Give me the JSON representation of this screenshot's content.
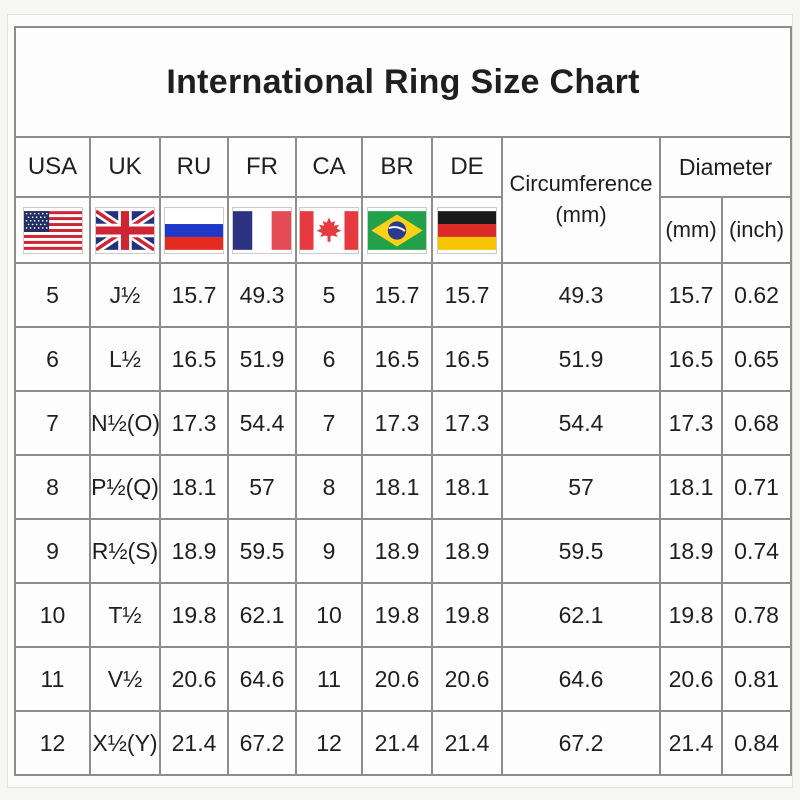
{
  "title": "International Ring Size Chart",
  "table": {
    "country_columns": [
      {
        "code": "USA",
        "icon": "usa-flag-icon"
      },
      {
        "code": "UK",
        "icon": "uk-flag-icon"
      },
      {
        "code": "RU",
        "icon": "ru-flag-icon"
      },
      {
        "code": "FR",
        "icon": "fr-flag-icon"
      },
      {
        "code": "CA",
        "icon": "ca-flag-icon"
      },
      {
        "code": "BR",
        "icon": "br-flag-icon"
      },
      {
        "code": "DE",
        "icon": "de-flag-icon"
      }
    ],
    "circumference_header": "Circumference",
    "circumference_unit": "(mm)",
    "diameter_header": "Diameter",
    "diameter_mm_label": "(mm)",
    "diameter_inch_label": "(inch)",
    "row_keys": [
      "usa",
      "uk",
      "ru",
      "fr",
      "ca",
      "br",
      "de",
      "circumference_mm",
      "diameter_mm",
      "diameter_inch"
    ]
  },
  "colors": {
    "border_gray": "#8e8e8e",
    "text": "#1f1f1f",
    "cell_background": "#fdfdfd"
  },
  "chart_data": {
    "type": "table",
    "title": "International Ring Size Chart",
    "columns": [
      "USA",
      "UK",
      "RU",
      "FR",
      "CA",
      "BR",
      "DE",
      "Circumference (mm)",
      "Diameter (mm)",
      "Diameter (inch)"
    ],
    "rows": [
      [
        "5",
        "J½",
        "15.7",
        "49.3",
        "5",
        "15.7",
        "15.7",
        "49.3",
        "15.7",
        "0.62"
      ],
      [
        "6",
        "L½",
        "16.5",
        "51.9",
        "6",
        "16.5",
        "16.5",
        "51.9",
        "16.5",
        "0.65"
      ],
      [
        "7",
        "N½(O)",
        "17.3",
        "54.4",
        "7",
        "17.3",
        "17.3",
        "54.4",
        "17.3",
        "0.68"
      ],
      [
        "8",
        "P½(Q)",
        "18.1",
        "57",
        "8",
        "18.1",
        "18.1",
        "57",
        "18.1",
        "0.71"
      ],
      [
        "9",
        "R½(S)",
        "18.9",
        "59.5",
        "9",
        "18.9",
        "18.9",
        "59.5",
        "18.9",
        "0.74"
      ],
      [
        "10",
        "T½",
        "19.8",
        "62.1",
        "10",
        "19.8",
        "19.8",
        "62.1",
        "19.8",
        "0.78"
      ],
      [
        "11",
        "V½",
        "20.6",
        "64.6",
        "11",
        "20.6",
        "20.6",
        "64.6",
        "20.6",
        "0.81"
      ],
      [
        "12",
        "X½(Y)",
        "21.4",
        "67.2",
        "12",
        "21.4",
        "21.4",
        "67.2",
        "21.4",
        "0.84"
      ]
    ]
  }
}
